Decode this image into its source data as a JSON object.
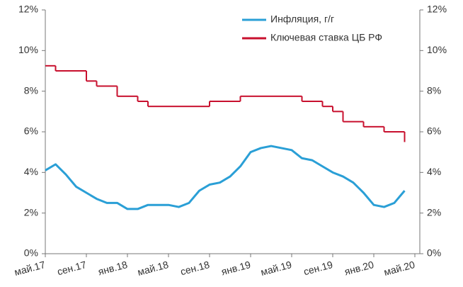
{
  "chart_data": {
    "type": "line",
    "categories": [
      "май.17",
      null,
      null,
      null,
      "сен.17",
      null,
      null,
      null,
      "янв.18",
      null,
      null,
      null,
      "май.18",
      null,
      null,
      null,
      "сен.18",
      null,
      null,
      null,
      "янв.19",
      null,
      null,
      null,
      "май.19",
      null,
      null,
      null,
      "сен.19",
      null,
      null,
      null,
      "янв.20",
      null,
      null,
      null,
      "май.20"
    ],
    "series": [
      {
        "name": "Инфляция, г/г",
        "color": "#2a9fd6",
        "style": "line",
        "values": [
          4.1,
          4.4,
          3.9,
          3.3,
          3.0,
          2.7,
          2.5,
          2.5,
          2.2,
          2.2,
          2.4,
          2.4,
          2.4,
          2.3,
          2.5,
          3.1,
          3.4,
          3.5,
          3.8,
          4.3,
          5.0,
          5.2,
          5.3,
          5.2,
          5.1,
          4.7,
          4.6,
          4.3,
          4.0,
          3.8,
          3.5,
          3.0,
          2.4,
          2.3,
          2.5,
          3.1,
          null
        ]
      },
      {
        "name": "Ключевая ставка ЦБ РФ",
        "color": "#c8102e",
        "style": "step",
        "values": [
          9.25,
          9.0,
          9.0,
          9.0,
          8.5,
          8.25,
          8.25,
          7.75,
          7.75,
          7.5,
          7.25,
          7.25,
          7.25,
          7.25,
          7.25,
          7.25,
          7.5,
          7.5,
          7.5,
          7.75,
          7.75,
          7.75,
          7.75,
          7.75,
          7.75,
          7.5,
          7.5,
          7.25,
          7.0,
          6.5,
          6.5,
          6.25,
          6.25,
          6.0,
          6.0,
          5.5,
          null
        ]
      }
    ],
    "ylim": [
      0,
      12
    ],
    "yticks": [
      {
        "value": 0,
        "label": "0%"
      },
      {
        "value": 2,
        "label": "2%"
      },
      {
        "value": 4,
        "label": "4%"
      },
      {
        "value": 6,
        "label": "6%"
      },
      {
        "value": 8,
        "label": "8%"
      },
      {
        "value": 10,
        "label": "10%"
      },
      {
        "value": 12,
        "label": "12%"
      }
    ],
    "y2lim": [
      0,
      12
    ],
    "y2ticks": [
      {
        "value": 0,
        "label": "0%"
      },
      {
        "value": 2,
        "label": "2%"
      },
      {
        "value": 4,
        "label": "4%"
      },
      {
        "value": 6,
        "label": "6%"
      },
      {
        "value": 8,
        "label": "8%"
      },
      {
        "value": 10,
        "label": "10%"
      },
      {
        "value": 12,
        "label": "12%"
      }
    ],
    "legend": "top-right",
    "grid": false
  }
}
